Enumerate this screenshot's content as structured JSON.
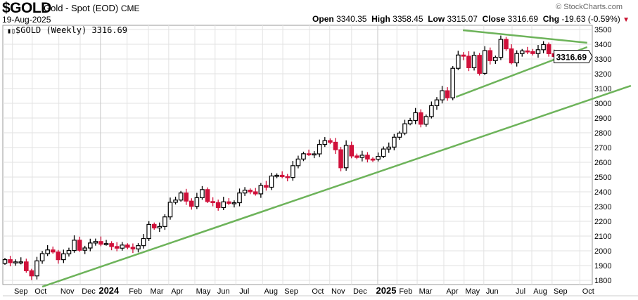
{
  "header": {
    "symbol": "$GOLD",
    "name": "Gold - Spot (EOD)",
    "exchange": "CME",
    "date": "19-Aug-2025",
    "copyright": "© StockCharts.com",
    "open_label": "Open",
    "open": "3340.35",
    "high_label": "High",
    "high": "3358.45",
    "low_label": "Low",
    "low": "3315.07",
    "close_label": "Close",
    "close": "3316.69",
    "chg_label": "Chg",
    "chg": "-19.63 (-0.59%)"
  },
  "legend": {
    "text": "$GOLD (Weekly) 3316.69"
  },
  "price_tag": "3316.69",
  "colors": {
    "up": "#ffffff",
    "down": "#d0103a",
    "trendline": "#6db35a",
    "grid": "#e2e2e2"
  },
  "chart_data": {
    "type": "candlestick",
    "title": "$GOLD (Weekly)",
    "start_week": "2023-08-28",
    "ylim": [
      1760,
      3540
    ],
    "yticks": [
      1800,
      1900,
      2000,
      2100,
      2200,
      2300,
      2400,
      2500,
      2600,
      2700,
      2800,
      2900,
      3000,
      3100,
      3200,
      3300,
      3400,
      3500
    ],
    "close": [
      1940,
      1920,
      1925,
      1925,
      1865,
      1830,
      1932,
      1981,
      2006,
      1992,
      1940,
      1980,
      2002,
      2072,
      2004,
      2019,
      2053,
      2063,
      2045,
      2049,
      2029,
      2018,
      2039,
      2024,
      2013,
      2035,
      2083,
      2179,
      2155,
      2165,
      2230,
      2329,
      2344,
      2392,
      2337,
      2301,
      2360,
      2415,
      2334,
      2327,
      2293,
      2332,
      2322,
      2326,
      2392,
      2411,
      2400,
      2386,
      2443,
      2431,
      2507,
      2512,
      2503,
      2497,
      2577,
      2622,
      2658,
      2653,
      2657,
      2721,
      2747,
      2736,
      2685,
      2563,
      2715,
      2643,
      2633,
      2648,
      2622,
      2621,
      2640,
      2690,
      2703,
      2770,
      2798,
      2861,
      2883,
      2936,
      2858,
      2910,
      2984,
      3023,
      3085,
      3037,
      3237,
      3327,
      3319,
      3241,
      3325,
      3203,
      3357,
      3289,
      3311,
      3433,
      3369,
      3274,
      3337,
      3355,
      3350,
      3337,
      3363,
      3398,
      3336,
      3317
    ],
    "first_open": 1915,
    "xlabels": [
      {
        "label": "Sep",
        "week": 3
      },
      {
        "label": "Oct",
        "week": 6.7
      },
      {
        "label": "Nov",
        "week": 11.7
      },
      {
        "label": "Dec",
        "week": 15.7
      },
      {
        "label": "2024",
        "week": 19.5,
        "bold": true
      },
      {
        "label": "Feb",
        "week": 24.5
      },
      {
        "label": "Mar",
        "week": 28.5
      },
      {
        "label": "Apr",
        "week": 32.3
      },
      {
        "label": "May",
        "week": 37.2
      },
      {
        "label": "Jun",
        "week": 41
      },
      {
        "label": "Jul",
        "week": 44.9
      },
      {
        "label": "Aug",
        "week": 49.9
      },
      {
        "label": "Sep",
        "week": 53.7
      },
      {
        "label": "Oct",
        "week": 58.7
      },
      {
        "label": "Nov",
        "week": 62.5
      },
      {
        "label": "Dec",
        "week": 66.6
      },
      {
        "label": "2025",
        "week": 71.5,
        "bold": true
      },
      {
        "label": "Feb",
        "week": 75.1
      },
      {
        "label": "Mar",
        "week": 78.9
      },
      {
        "label": "Apr",
        "week": 83.9
      },
      {
        "label": "May",
        "week": 87.7
      },
      {
        "label": "Jun",
        "week": 91.4
      },
      {
        "label": "Jul",
        "week": 96.7
      },
      {
        "label": "Aug",
        "week": 100.4
      },
      {
        "label": "Sep",
        "week": 104.2
      },
      {
        "label": "Oct",
        "week": 109.4
      }
    ],
    "trendlines": [
      {
        "name": "long-support",
        "from": [
          7,
          1757
        ],
        "to": [
          117.4,
          3119
        ]
      },
      {
        "name": "triangle-top",
        "from": [
          85.9,
          3495
        ],
        "to": [
          109.2,
          3410
        ]
      },
      {
        "name": "triangle-bottom",
        "from": [
          84.6,
          3043
        ],
        "to": [
          109.2,
          3381
        ]
      }
    ]
  }
}
